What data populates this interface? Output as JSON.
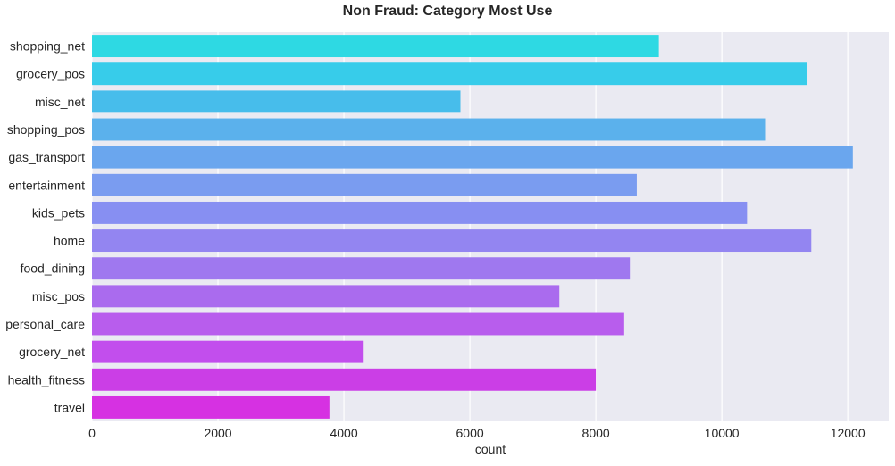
{
  "chart_data": {
    "type": "bar",
    "orientation": "horizontal",
    "title": "Non Fraud: Category Most Use",
    "xlabel": "count",
    "ylabel": "",
    "xlim": [
      0,
      12650
    ],
    "xticks": [
      0,
      2000,
      4000,
      6000,
      8000,
      10000,
      12000
    ],
    "xtick_labels": [
      "0",
      "2000",
      "4000",
      "6000",
      "8000",
      "10000",
      "12000"
    ],
    "grid": true,
    "categories": [
      "shopping_net",
      "grocery_pos",
      "misc_net",
      "shopping_pos",
      "gas_transport",
      "entertainment",
      "kids_pets",
      "home",
      "food_dining",
      "misc_pos",
      "personal_care",
      "grocery_net",
      "health_fitness",
      "travel"
    ],
    "values": [
      9000,
      11350,
      5850,
      10700,
      12080,
      8650,
      10400,
      11420,
      8540,
      7420,
      8450,
      4300,
      8000,
      3770
    ],
    "colors": [
      "#2ed9e3",
      "#37ccea",
      "#47bdeb",
      "#5bb1ec",
      "#6aa6ee",
      "#7a9cf0",
      "#878ff2",
      "#9385f1",
      "#9f78ef",
      "#aa6bee",
      "#b85ded",
      "#c24eed",
      "#cb3ee6",
      "#d631e2"
    ],
    "background_color": "#eaeaf2"
  }
}
